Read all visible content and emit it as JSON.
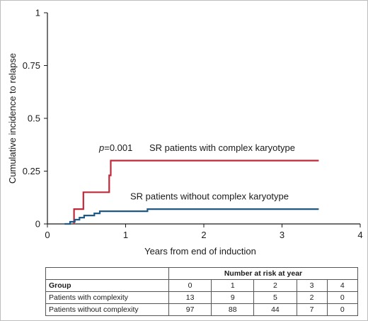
{
  "chart_data": {
    "type": "line",
    "ylabel": "Cumulative incidence to relapse",
    "xlabel": "Years from end of induction",
    "xlim": [
      0,
      4
    ],
    "ylim": [
      0,
      1
    ],
    "x_ticks": [
      "0",
      "1",
      "2",
      "3",
      "4"
    ],
    "y_ticks": [
      "0",
      "0.25",
      "0.5",
      "0.75",
      "1"
    ],
    "p_value_prefix": "p",
    "p_value_suffix": "=0.001",
    "series": [
      {
        "name": "SR patients with complex karyotype",
        "color": "#c0283a",
        "x": [
          0.34,
          0.34,
          0.46,
          0.46,
          0.79,
          0.79,
          0.81,
          0.81,
          3.47
        ],
        "y": [
          0,
          0.07,
          0.07,
          0.15,
          0.15,
          0.23,
          0.23,
          0.3,
          0.3
        ]
      },
      {
        "name": "SR patients without complex karyotype",
        "color": "#1f5a86",
        "x": [
          0.22,
          0.29,
          0.29,
          0.35,
          0.35,
          0.41,
          0.41,
          0.47,
          0.47,
          0.6,
          0.6,
          0.67,
          0.67,
          1.28,
          1.28,
          3.47
        ],
        "y": [
          0,
          0,
          0.01,
          0.01,
          0.02,
          0.02,
          0.03,
          0.03,
          0.04,
          0.04,
          0.05,
          0.05,
          0.06,
          0.06,
          0.07,
          0.07
        ]
      }
    ]
  },
  "table": {
    "group_header": "Group",
    "risk_header": "Number at risk at year",
    "years": [
      "0",
      "1",
      "2",
      "3",
      "4"
    ],
    "rows": [
      {
        "label": "Patients with complexity",
        "values": [
          "13",
          "9",
          "5",
          "2",
          "0"
        ]
      },
      {
        "label": "Patients without complexity",
        "values": [
          "97",
          "88",
          "44",
          "7",
          "0"
        ]
      }
    ]
  }
}
